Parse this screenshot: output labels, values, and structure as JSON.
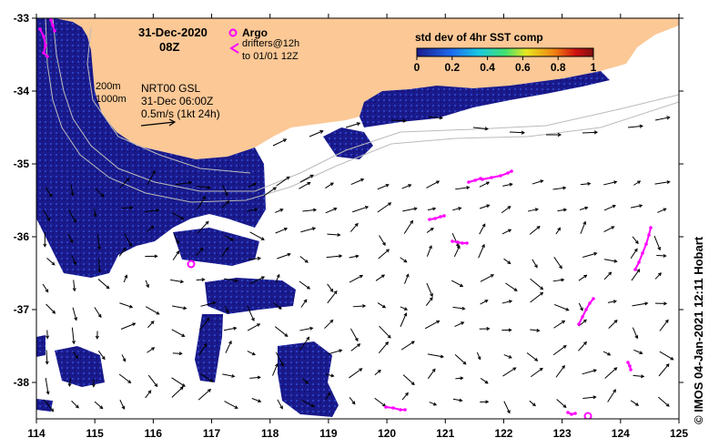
{
  "map": {
    "x_ticks": [
      "114",
      "115",
      "116",
      "117",
      "118",
      "119",
      "120",
      "121",
      "122",
      "123",
      "124",
      "125"
    ],
    "y_ticks": [
      "-33",
      "-34",
      "-35",
      "-36",
      "-37",
      "-38"
    ],
    "lon_range": [
      114,
      125
    ],
    "lat_range": [
      -38.5,
      -33
    ],
    "colors": {
      "land": "#fbc896",
      "sst_patch": "#1a1a8c",
      "drifter": "#ff00ff",
      "bathymetry": "#bbbbbb",
      "arrows": "#000000"
    }
  },
  "title": {
    "date": "31-Dec-2020",
    "hour": "08Z"
  },
  "legend": {
    "argo_label": "Argo",
    "drifters_line1": "drifters@12h",
    "drifters_line2": "to 01/01 12Z",
    "argo_icon": "circle-marker-icon",
    "drifter_icon": "chevron-left-icon"
  },
  "colorbar": {
    "title": "std dev of 4hr SST comp",
    "ticks": [
      "0",
      "0.2",
      "0.4",
      "0.6",
      "0.8",
      "1"
    ]
  },
  "annotations": {
    "depth1": "200m",
    "depth2": "1000m",
    "product": "NRT00 GSL",
    "time": "31-Dec 06:00Z",
    "scale": "0.5m/s (1kt 24h)"
  },
  "credit": "© IMOS 04-Jan-2021 12:11 Hobart"
}
